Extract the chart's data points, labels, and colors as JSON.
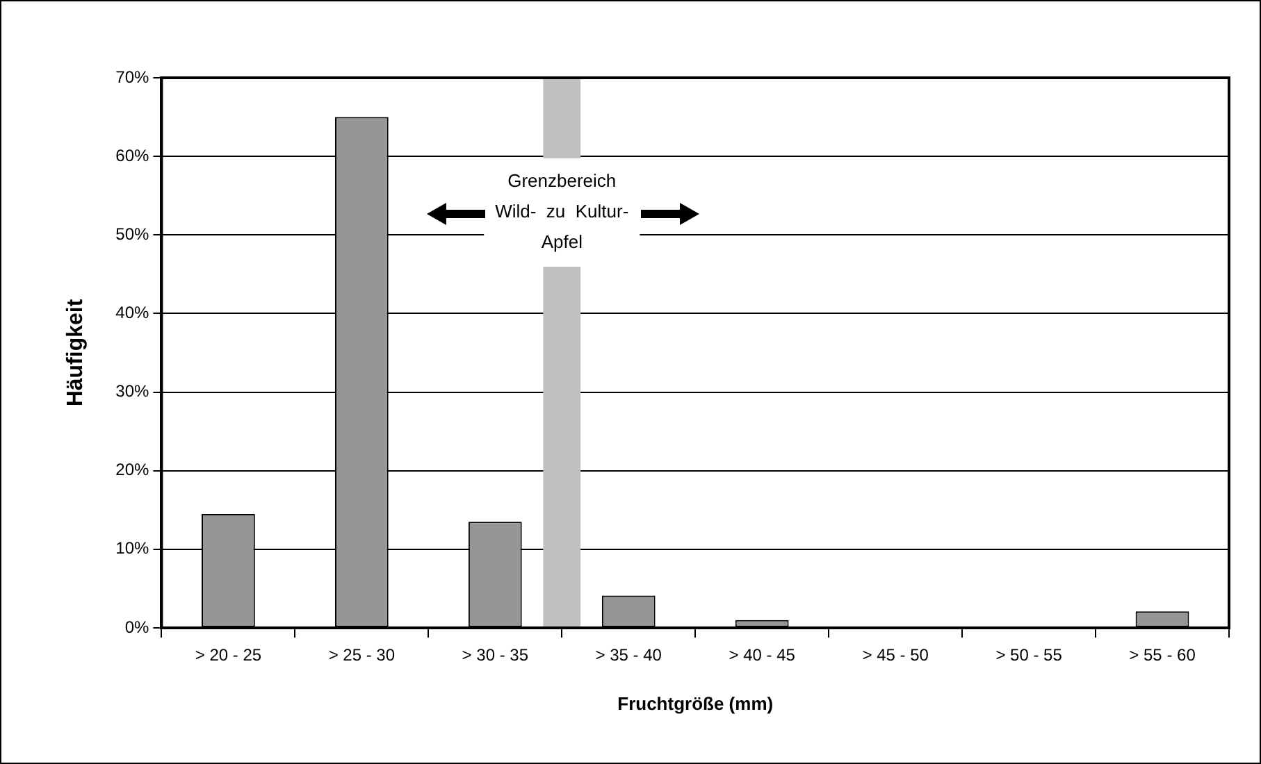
{
  "chart_data": {
    "type": "bar",
    "xlabel": "Fruchtgröße (mm)",
    "ylabel": "Häufigkeit",
    "categories": [
      "> 20 - 25",
      "> 25 - 30",
      "> 30 - 35",
      "> 35 - 40",
      "> 40 - 45",
      "> 45 - 50",
      "> 50 - 55",
      "> 55 - 60"
    ],
    "values": [
      14.5,
      65,
      13.5,
      4.1,
      1,
      0,
      0,
      2.1
    ],
    "color": "#969696",
    "ylim": [
      0,
      70
    ],
    "yticks": [
      {
        "value": 0,
        "label": "0%"
      },
      {
        "value": 10,
        "label": "10%"
      },
      {
        "value": 20,
        "label": "20%"
      },
      {
        "value": 30,
        "label": "30%"
      },
      {
        "value": 40,
        "label": "40%"
      },
      {
        "value": 50,
        "label": "50%"
      },
      {
        "value": 60,
        "label": "60%"
      },
      {
        "value": 70,
        "label": "70%"
      }
    ],
    "grid": "y",
    "legend": false,
    "bands": [
      {
        "axis": "x",
        "from": "> 30 - 35",
        "to": "> 35 - 40",
        "label": "Grenzbereich\nWild-  zu  Kultur-\nApfel",
        "color": "#c0c0c0"
      }
    ]
  }
}
